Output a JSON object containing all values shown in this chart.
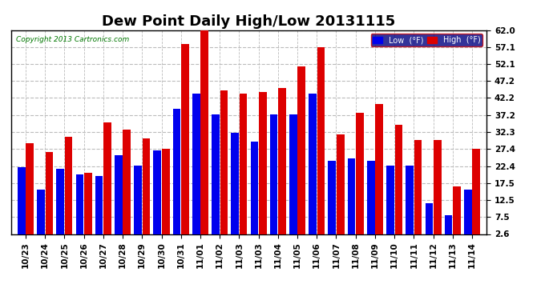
{
  "title": "Dew Point Daily High/Low 20131115",
  "copyright": "Copyright 2013 Cartronics.com",
  "dates": [
    "10/23",
    "10/24",
    "10/25",
    "10/26",
    "10/27",
    "10/28",
    "10/29",
    "10/30",
    "10/31",
    "11/01",
    "11/02",
    "11/03",
    "11/03",
    "11/04",
    "11/05",
    "11/06",
    "11/07",
    "11/08",
    "11/09",
    "11/10",
    "11/11",
    "11/12",
    "11/13",
    "11/14"
  ],
  "low_values": [
    22.0,
    15.5,
    21.5,
    20.0,
    19.5,
    25.5,
    22.5,
    27.0,
    39.0,
    43.5,
    37.5,
    32.0,
    29.5,
    37.5,
    37.5,
    43.5,
    24.0,
    24.5,
    24.0,
    22.5,
    22.5,
    11.5,
    8.0,
    15.5
  ],
  "high_values": [
    29.0,
    26.5,
    31.0,
    20.5,
    35.0,
    33.0,
    30.5,
    27.5,
    58.0,
    62.0,
    44.5,
    43.5,
    44.0,
    45.0,
    51.5,
    57.0,
    31.5,
    38.0,
    40.5,
    34.5,
    30.0,
    30.0,
    16.5,
    27.5
  ],
  "low_color": "#0000ee",
  "high_color": "#dd0000",
  "bg_color": "#ffffff",
  "plot_bg_color": "#ffffff",
  "grid_color": "#bbbbbb",
  "ymin": 2.6,
  "ymax": 62.0,
  "yticks": [
    2.6,
    7.5,
    12.5,
    17.5,
    22.4,
    27.4,
    32.3,
    37.2,
    42.2,
    47.2,
    52.1,
    57.1,
    62.0
  ],
  "ylabel_color": "#000000",
  "title_fontsize": 13,
  "tick_fontsize": 7.5
}
